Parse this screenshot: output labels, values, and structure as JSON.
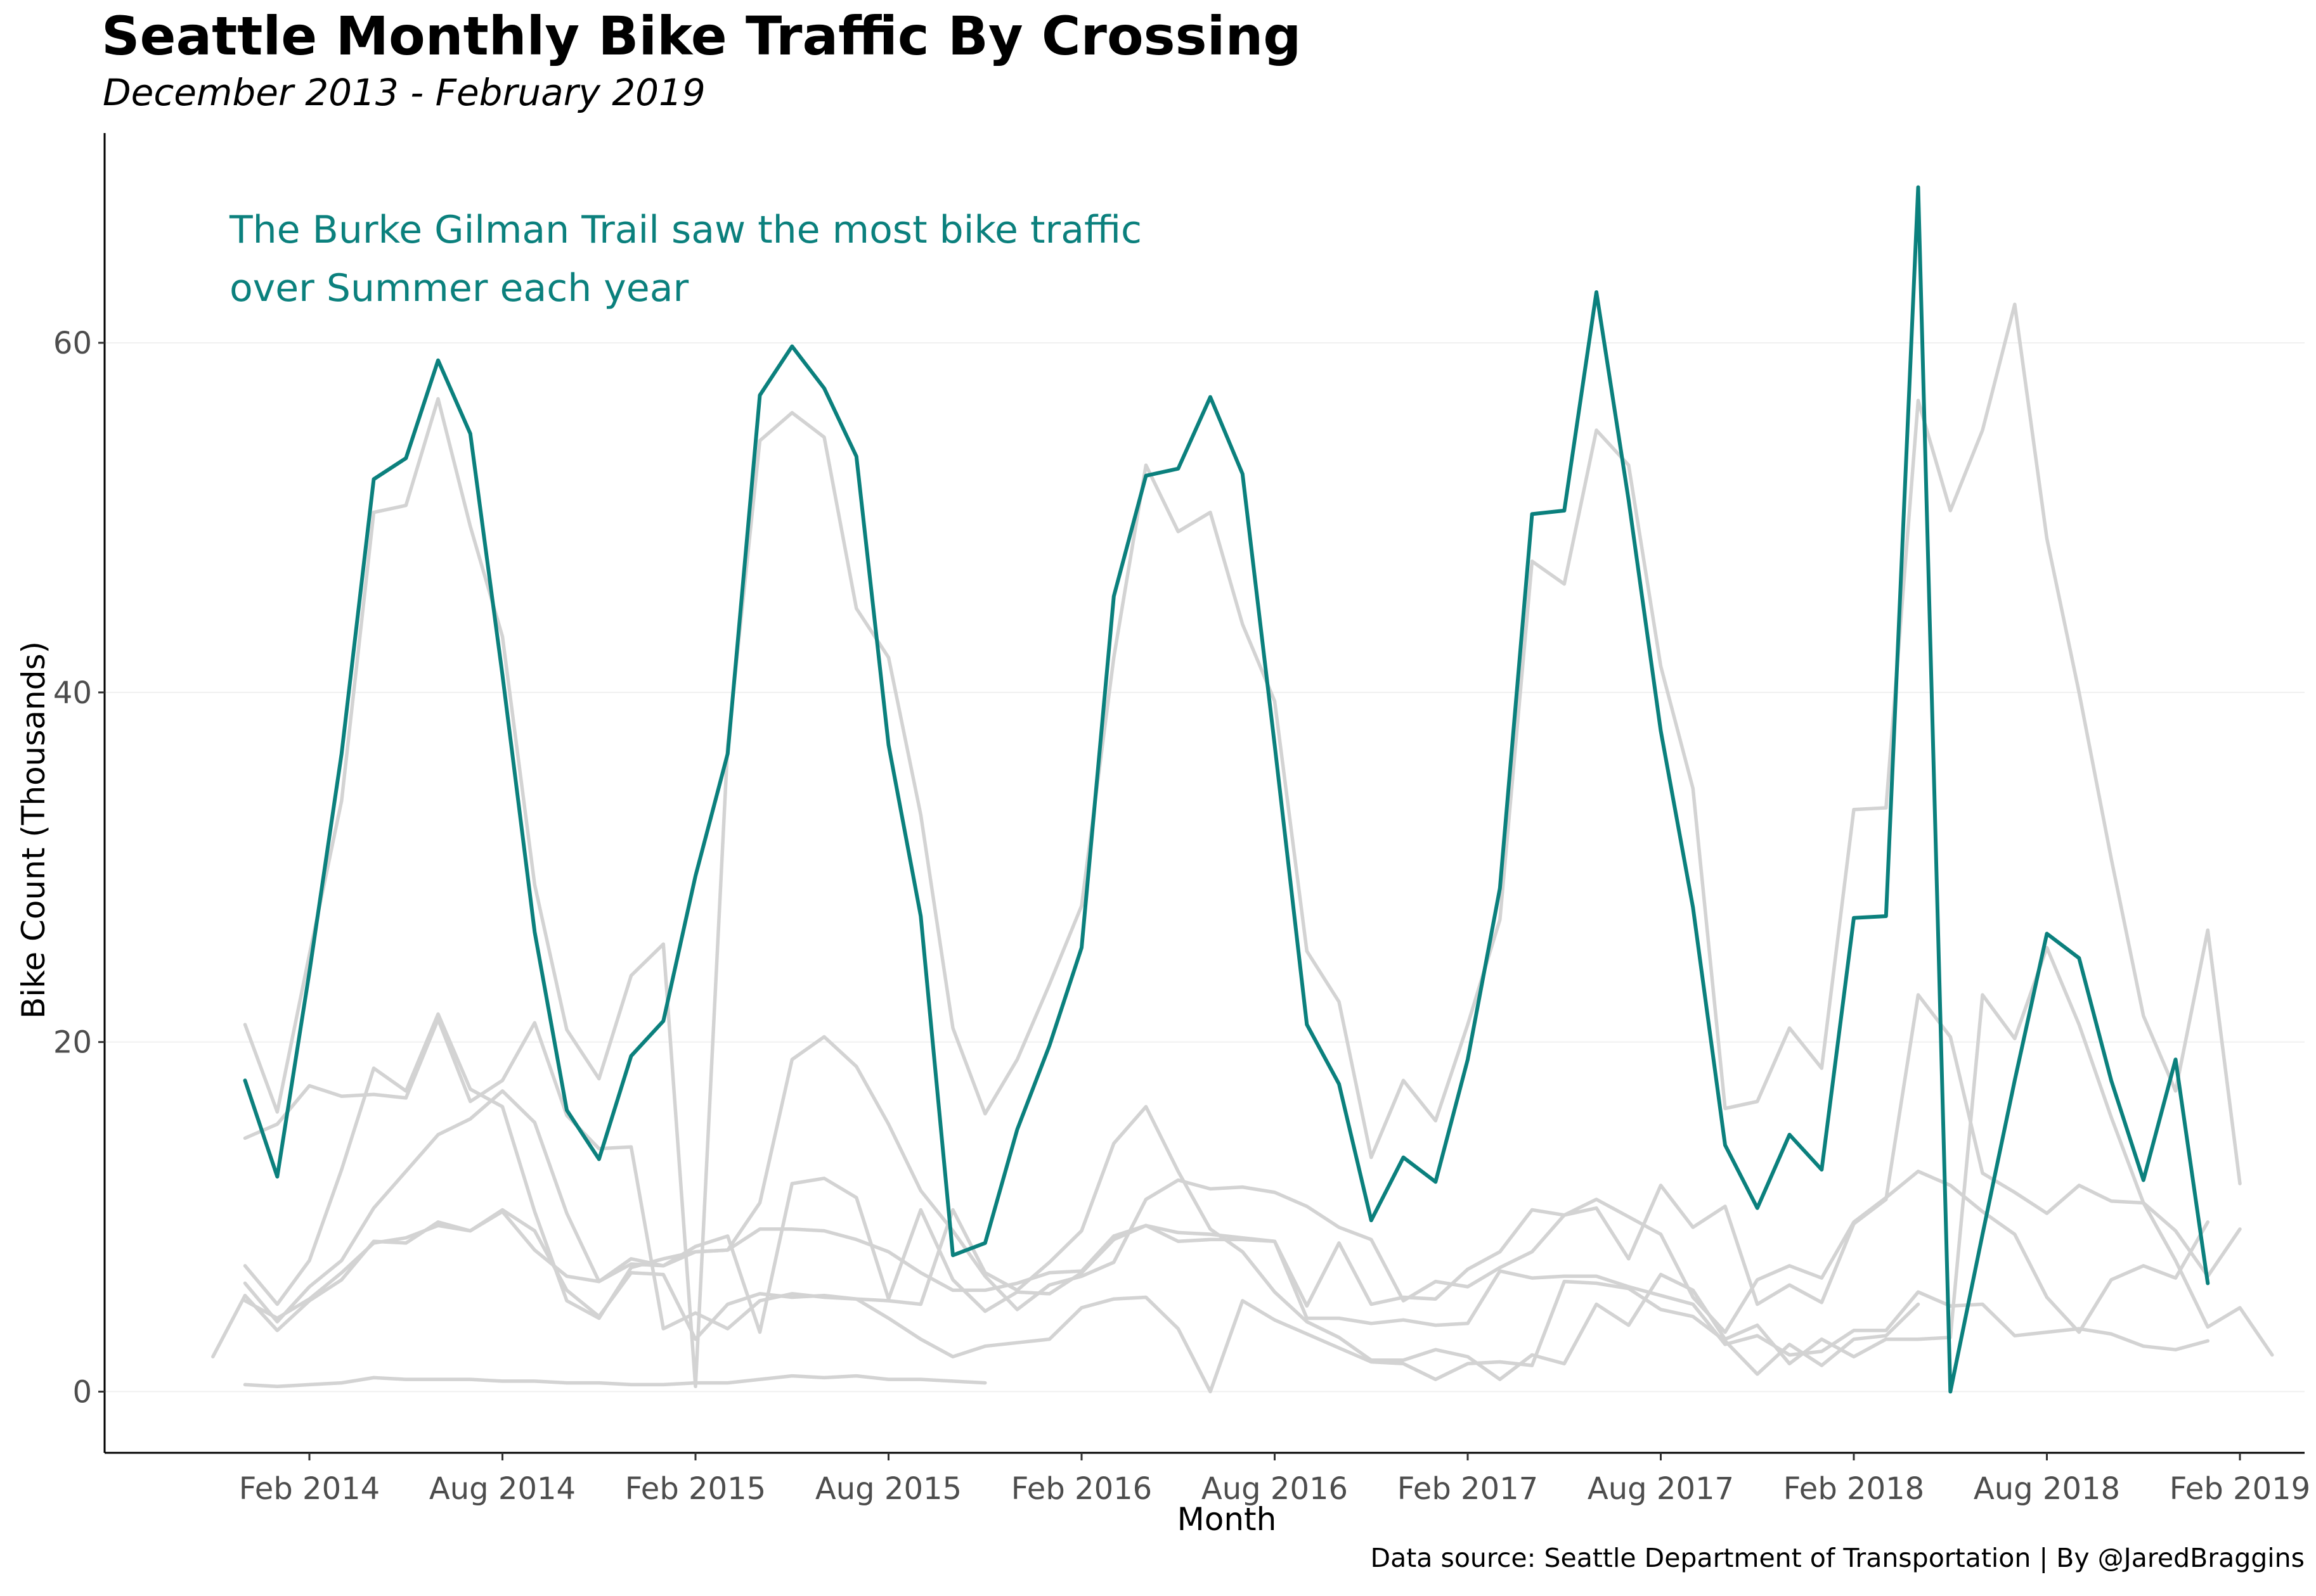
{
  "title": "Seattle Monthly Bike Traffic By Crossing",
  "subtitle": "December 2013 - February 2019",
  "caption": "Data source: Seattle Department of Transportation | By @JaredBraggins",
  "colors": {
    "highlight": "#0b807d",
    "other": "#d3d3d3",
    "grid": "#f0f0f0",
    "axis": "#000000"
  },
  "chart_data": {
    "type": "line",
    "title": "Seattle Monthly Bike Traffic By Crossing",
    "subtitle": "December 2013 - February 2019",
    "xlabel": "Month",
    "ylabel": "Bike Count (Thousands)",
    "ylim": [
      -3.5,
      72
    ],
    "y_ticks": [
      0,
      20,
      40,
      60
    ],
    "x_ticks": [
      "Feb 2014",
      "Aug 2014",
      "Feb 2015",
      "Aug 2015",
      "Feb 2016",
      "Aug 2016",
      "Feb 2017",
      "Aug 2017",
      "Feb 2018",
      "Aug 2018",
      "Feb 2019"
    ],
    "grid": "horizontal",
    "legend": "none",
    "annotation": [
      "The Burke Gilman Trail saw the most bike traffic",
      "over Summer each year"
    ],
    "highlight_series": 0,
    "series": [
      {
        "start": "2013-12",
        "values": [
          17.8,
          12.3,
          24.0,
          36.5,
          52.2,
          53.4,
          59.0,
          54.8,
          41.0,
          26.3,
          16.1,
          13.3,
          19.2,
          21.2,
          29.5,
          36.5,
          57.0,
          59.8,
          57.4,
          53.5,
          37.0,
          27.2,
          7.8,
          8.5,
          15.0,
          19.8,
          25.4,
          45.5,
          52.4,
          52.8,
          56.9,
          52.5,
          37.0,
          21.0,
          17.6,
          9.8,
          13.4,
          12.0,
          19.0,
          28.8,
          50.2,
          50.4,
          62.9,
          51.0,
          37.8,
          27.7,
          14.1,
          10.5,
          14.7,
          12.7,
          27.1,
          27.2,
          68.9,
          0.0,
          9.0,
          17.8,
          26.2,
          24.8,
          17.8,
          12.1,
          19.0,
          6.2
        ]
      },
      {
        "start": "2013-12",
        "values": [
          21.0,
          16.0,
          25.0,
          33.8,
          50.3,
          50.7,
          56.8,
          49.5,
          43.2,
          29.0,
          20.7,
          17.9,
          23.8,
          25.6,
          0.3,
          37.0,
          54.4,
          56.0,
          54.6,
          44.8,
          42.0,
          33.0,
          20.8,
          15.9,
          19.0,
          23.3,
          27.8,
          42.0,
          53.0,
          49.2,
          50.3,
          43.9,
          39.5,
          25.2,
          22.3,
          13.4,
          17.8,
          15.5,
          21.0,
          27.0,
          47.5,
          46.2,
          55.0,
          53.0,
          41.5,
          34.5,
          16.2,
          16.6,
          20.8,
          18.5,
          33.3,
          33.4,
          56.7,
          50.4,
          55.0,
          62.2,
          48.8,
          40.0,
          30.5,
          21.5,
          17.2,
          26.4,
          11.9
        ]
      },
      {
        "start": "2013-12",
        "values": [
          14.5,
          15.3,
          17.5,
          16.9,
          17.0,
          16.8,
          21.3,
          16.6,
          17.8,
          21.1,
          15.8,
          13.9,
          14.0,
          3.6,
          4.5,
          3.6,
          5.2,
          5.6,
          5.4,
          5.3,
          5.2,
          5.0,
          10.4,
          6.8,
          5.8,
          7.4,
          9.2,
          14.2,
          16.3,
          12.6,
          9.3,
          8.0,
          5.7,
          4.0,
          3.1,
          1.8,
          1.8,
          2.4,
          2.0,
          0.7,
          2.1,
          1.6,
          5.0,
          3.8,
          6.7,
          5.8,
          3.0,
          3.8,
          1.6,
          3.0,
          2.0,
          3.0,
          3.0,
          3.1,
          22.7,
          20.2,
          25.4,
          21.0,
          15.7,
          10.8,
          7.5,
          3.7,
          4.8,
          2.1
        ]
      },
      {
        "start": "2013-12",
        "values": [
          7.2,
          5.0,
          7.5,
          12.7,
          18.5,
          17.2,
          21.6,
          17.3,
          16.3,
          10.3,
          5.2,
          4.2,
          7.1,
          7.6,
          8.0,
          8.1,
          10.8,
          19.0,
          20.3,
          18.6,
          15.3,
          11.5,
          9.2,
          6.6,
          4.7,
          6.1,
          6.6,
          7.4,
          11.0,
          12.1,
          11.6,
          11.7,
          11.4,
          10.6,
          9.4,
          8.7,
          5.2,
          6.3,
          6.0,
          7.1,
          8.0,
          10.1,
          10.5,
          7.6,
          11.8,
          9.4,
          10.6,
          5.0,
          6.1,
          5.1,
          9.6,
          11.0,
          22.7,
          20.3,
          12.5,
          11.4,
          10.2,
          11.8,
          10.9,
          10.8,
          9.2,
          6.6,
          9.3
        ]
      },
      {
        "start": "2013-12",
        "values": [
          6.2,
          4.0,
          6.0,
          7.5,
          10.5,
          12.6,
          14.7,
          15.6,
          17.2,
          15.4,
          10.2,
          6.3,
          7.6,
          7.2,
          8.3,
          8.9,
          3.4,
          11.9,
          12.2,
          11.1,
          5.3,
          10.4,
          6.4,
          4.6,
          5.7,
          5.6,
          6.8,
          8.7,
          9.5,
          8.6,
          8.7,
          8.7,
          8.6,
          4.9,
          8.5,
          5.0,
          5.4,
          5.3,
          7.0,
          8.0,
          10.4,
          10.1,
          11.0,
          10.0,
          9.0,
          5.4,
          3.4,
          6.4,
          7.2,
          6.5,
          9.7,
          11.1,
          12.6,
          11.8,
          10.3,
          9.0,
          5.4,
          3.4,
          6.4,
          7.2,
          6.5,
          9.7
        ]
      },
      {
        "start": "2013-12",
        "values": [
          5.2,
          4.2,
          5.3,
          6.8,
          8.5,
          8.8,
          9.5,
          9.2,
          10.3,
          8.1,
          6.6,
          6.3,
          7.3,
          7.2,
          8.0,
          8.1,
          9.3,
          9.3,
          9.2,
          8.7,
          8.0,
          6.8,
          5.8,
          5.8,
          6.2,
          6.8,
          6.9,
          8.9,
          9.5,
          9.1,
          9.0,
          8.8,
          8.6,
          4.2,
          4.2,
          3.9,
          4.1,
          3.8,
          3.9,
          6.9,
          6.5,
          6.6,
          6.6,
          6.0,
          5.5,
          5.0,
          2.7,
          3.2,
          2.1,
          2.3,
          3.5,
          3.5,
          5.7,
          4.9,
          5.0,
          3.2,
          3.4,
          3.6,
          3.3,
          2.6,
          2.4,
          2.9
        ]
      },
      {
        "start": "2013-11",
        "values": [
          2.0,
          5.5,
          3.5,
          5.2,
          6.4,
          8.6,
          8.5,
          9.7,
          9.2,
          10.4,
          9.2,
          5.8,
          4.3,
          6.8,
          6.7,
          3.0,
          5.0,
          5.6,
          5.4,
          5.5,
          5.3,
          4.2,
          3.0,
          2.0,
          2.6,
          2.8,
          3.0,
          4.8,
          5.3,
          5.4,
          3.6,
          0.0,
          5.2,
          4.1,
          3.3,
          2.5,
          1.7,
          1.6,
          0.7,
          1.6,
          1.7,
          1.5,
          6.3,
          6.2,
          5.9,
          4.7,
          4.3,
          2.9,
          1.0,
          2.7,
          1.5,
          3.0,
          3.2,
          5.0
        ]
      },
      {
        "start": "2013-12",
        "values": [
          0.4,
          0.3,
          0.4,
          0.5,
          0.8,
          0.7,
          0.7,
          0.7,
          0.6,
          0.6,
          0.5,
          0.5,
          0.4,
          0.4,
          0.5,
          0.5,
          0.7,
          0.9,
          0.8,
          0.9,
          0.7,
          0.7,
          0.6,
          0.5
        ]
      }
    ]
  }
}
